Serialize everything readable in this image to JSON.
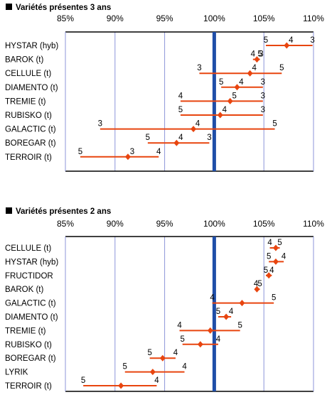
{
  "colors": {
    "bar": "#e8450f",
    "grid": "#8c95d9",
    "reference": "#1f4ea8",
    "frame": "#000000"
  },
  "chart_data": [
    {
      "type": "range",
      "title": "Variétés présentes 3 ans",
      "xlabel": "",
      "ylabel": "",
      "xlim": [
        85,
        110
      ],
      "xticks": [
        85,
        90,
        95,
        100,
        105,
        110
      ],
      "xtick_labels": [
        "85%",
        "90%",
        "95%",
        "100%",
        "105%",
        "110%"
      ],
      "reference_line": 100,
      "grid": true,
      "series": [
        {
          "categories": [
            "HYSTAR (hyb)",
            "BAROK (t)",
            "CELLULE (t)",
            "DIAMENTO (t)",
            "TREMIE (t)",
            "RUBISKO (t)",
            "GALACTIC (t)",
            "BOREGAR (t)",
            "TERROIR (t)"
          ],
          "low": [
            105.2,
            103.9,
            98.5,
            100.7,
            96.6,
            96.6,
            88.5,
            93.3,
            86.5
          ],
          "value": [
            107.3,
            104.3,
            103.6,
            102.3,
            101.6,
            100.6,
            97.9,
            96.2,
            91.3
          ],
          "high": [
            109.9,
            104.6,
            106.8,
            104.9,
            104.9,
            104.9,
            106.1,
            99.5,
            94.4
          ],
          "labels": [
            [
              "5",
              "4",
              "3"
            ],
            [
              "4",
              "3",
              "5"
            ],
            [
              "3",
              "4",
              "5"
            ],
            [
              "5",
              "4",
              "3"
            ],
            [
              "4",
              "5",
              "3"
            ],
            [
              "5",
              "4",
              "3"
            ],
            [
              "3",
              "4",
              "5"
            ],
            [
              "5",
              "4",
              "3"
            ],
            [
              "5",
              "3",
              "4"
            ]
          ]
        }
      ]
    },
    {
      "type": "range",
      "title": "Variétés présentes 2 ans",
      "xlabel": "",
      "ylabel": "",
      "xlim": [
        85,
        110
      ],
      "xticks": [
        85,
        90,
        95,
        100,
        105,
        110
      ],
      "xtick_labels": [
        "85%",
        "90%",
        "95%",
        "100%",
        "105%",
        "110%"
      ],
      "reference_line": 100,
      "grid": true,
      "series": [
        {
          "categories": [
            "CELLULE (t)",
            "HYSTAR (hyb)",
            "FRUCTIDOR",
            "BAROK (t)",
            "GALACTIC (t)",
            "DIAMENTO (t)",
            "TREMIE (t)",
            "RUBISKO (t)",
            "BOREGAR (t)",
            "LYRIK",
            "TERROIR (t)"
          ],
          "low": [
            105.6,
            105.5,
            105.2,
            104.2,
            99.8,
            100.4,
            96.5,
            96.8,
            93.5,
            91.0,
            86.8
          ],
          "value": [
            106.2,
            106.2,
            105.5,
            104.3,
            102.8,
            101.2,
            99.6,
            98.6,
            94.8,
            93.8,
            90.6
          ],
          "high": [
            106.6,
            107.0,
            105.8,
            104.6,
            106.0,
            101.7,
            102.6,
            100.4,
            96.1,
            97.0,
            94.2
          ],
          "labels": [
            [
              "4",
              "5"
            ],
            [
              "5",
              "4"
            ],
            [
              "5",
              "4"
            ],
            [
              "4",
              "5"
            ],
            [
              "4",
              "5"
            ],
            [
              "5",
              "4"
            ],
            [
              "4",
              "5"
            ],
            [
              "5",
              "4"
            ],
            [
              "5",
              "4"
            ],
            [
              "5",
              "4"
            ],
            [
              "5",
              "4"
            ]
          ]
        }
      ]
    }
  ]
}
